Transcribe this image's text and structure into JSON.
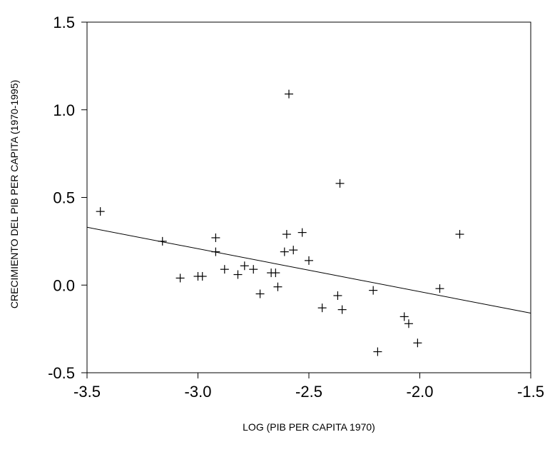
{
  "chart_data": {
    "type": "scatter",
    "title": "",
    "xlabel": "LOG (PIB PER CAPITA 1970)",
    "ylabel": "CRECIMIENTO DEL PIB PER CAPITA (1970-1995)",
    "xlim": [
      -3.5,
      -1.5
    ],
    "ylim": [
      -0.5,
      1.5
    ],
    "xticks": [
      "-3.5",
      "-3.0",
      "-2.5",
      "-2.0",
      "-1.5"
    ],
    "yticks": [
      "1.5",
      "1.0",
      "0.5",
      "0.0",
      "-0.5"
    ],
    "xtick_values": [
      -3.5,
      -3.0,
      -2.5,
      -2.0,
      -1.5
    ],
    "ytick_values": [
      1.5,
      1.0,
      0.5,
      0.0,
      -0.5
    ],
    "grid": false,
    "marker": "plus",
    "points": [
      {
        "x": -3.44,
        "y": 0.42
      },
      {
        "x": -3.16,
        "y": 0.25
      },
      {
        "x": -3.08,
        "y": 0.04
      },
      {
        "x": -3.0,
        "y": 0.05
      },
      {
        "x": -2.98,
        "y": 0.05
      },
      {
        "x": -2.92,
        "y": 0.27
      },
      {
        "x": -2.92,
        "y": 0.19
      },
      {
        "x": -2.88,
        "y": 0.09
      },
      {
        "x": -2.82,
        "y": 0.06
      },
      {
        "x": -2.79,
        "y": 0.11
      },
      {
        "x": -2.75,
        "y": 0.09
      },
      {
        "x": -2.72,
        "y": -0.05
      },
      {
        "x": -2.67,
        "y": 0.07
      },
      {
        "x": -2.65,
        "y": 0.07
      },
      {
        "x": -2.64,
        "y": -0.01
      },
      {
        "x": -2.61,
        "y": 0.19
      },
      {
        "x": -2.6,
        "y": 0.29
      },
      {
        "x": -2.59,
        "y": 1.09
      },
      {
        "x": -2.57,
        "y": 0.2
      },
      {
        "x": -2.53,
        "y": 0.3
      },
      {
        "x": -2.5,
        "y": 0.14
      },
      {
        "x": -2.44,
        "y": -0.13
      },
      {
        "x": -2.37,
        "y": -0.06
      },
      {
        "x": -2.36,
        "y": 0.58
      },
      {
        "x": -2.35,
        "y": -0.14
      },
      {
        "x": -2.21,
        "y": -0.03
      },
      {
        "x": -2.19,
        "y": -0.38
      },
      {
        "x": -2.07,
        "y": -0.18
      },
      {
        "x": -2.05,
        "y": -0.22
      },
      {
        "x": -2.01,
        "y": -0.33
      },
      {
        "x": -1.91,
        "y": -0.02
      },
      {
        "x": -1.82,
        "y": 0.29
      }
    ],
    "fit_line": {
      "x": [
        -3.5,
        -1.5
      ],
      "y": [
        0.33,
        -0.16
      ]
    }
  }
}
